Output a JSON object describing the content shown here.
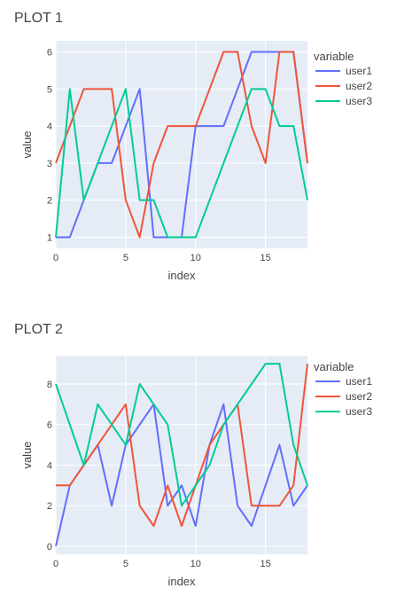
{
  "chart_data": [
    {
      "type": "line",
      "title": "PLOT 1",
      "xlabel": "index",
      "ylabel": "value",
      "xlim": [
        0,
        18
      ],
      "ylim": [
        0.7,
        6.3
      ],
      "xticks": [
        0,
        5,
        10,
        15
      ],
      "yticks": [
        1,
        2,
        3,
        4,
        5,
        6
      ],
      "x": [
        0,
        1,
        2,
        3,
        4,
        5,
        6,
        7,
        8,
        9,
        10,
        11,
        12,
        13,
        14,
        15,
        16,
        17,
        18
      ],
      "legend_title": "variable",
      "legend_position": "top-right",
      "grid": true,
      "series": [
        {
          "name": "user1",
          "color": "#636efa",
          "values": [
            1,
            1,
            2,
            3,
            3,
            4,
            5,
            1,
            1,
            1,
            4,
            4,
            4,
            5,
            6,
            6,
            6,
            6,
            3
          ]
        },
        {
          "name": "user2",
          "color": "#ef553b",
          "values": [
            3,
            4,
            5,
            5,
            5,
            2,
            1,
            3,
            4,
            4,
            4,
            5,
            6,
            6,
            4,
            3,
            6,
            6,
            3
          ]
        },
        {
          "name": "user3",
          "color": "#00cc96",
          "values": [
            1,
            5,
            2,
            3,
            4,
            5,
            2,
            2,
            1,
            1,
            1,
            2,
            3,
            4,
            5,
            5,
            4,
            4,
            2
          ]
        }
      ]
    },
    {
      "type": "line",
      "title": "PLOT 2",
      "xlabel": "index",
      "ylabel": "value",
      "xlim": [
        0,
        18
      ],
      "ylim": [
        -0.4,
        9.4
      ],
      "xticks": [
        0,
        5,
        10,
        15
      ],
      "yticks": [
        0,
        2,
        4,
        6,
        8
      ],
      "x": [
        0,
        1,
        2,
        3,
        4,
        5,
        6,
        7,
        8,
        9,
        10,
        11,
        12,
        13,
        14,
        15,
        16,
        17,
        18
      ],
      "legend_title": "variable",
      "legend_position": "top-right",
      "grid": true,
      "series": [
        {
          "name": "user1",
          "color": "#636efa",
          "values": [
            0,
            3,
            4,
            5,
            2,
            5,
            6,
            7,
            2,
            3,
            1,
            5,
            7,
            2,
            1,
            3,
            5,
            2,
            3
          ]
        },
        {
          "name": "user2",
          "color": "#ef553b",
          "values": [
            3,
            3,
            4,
            5,
            6,
            7,
            2,
            1,
            3,
            1,
            3,
            5,
            6,
            7,
            2,
            2,
            2,
            3,
            9
          ]
        },
        {
          "name": "user3",
          "color": "#00cc96",
          "values": [
            8,
            6,
            4,
            7,
            6,
            5,
            8,
            7,
            6,
            2,
            3,
            4,
            6,
            7,
            8,
            9,
            9,
            5,
            3
          ]
        }
      ]
    }
  ]
}
